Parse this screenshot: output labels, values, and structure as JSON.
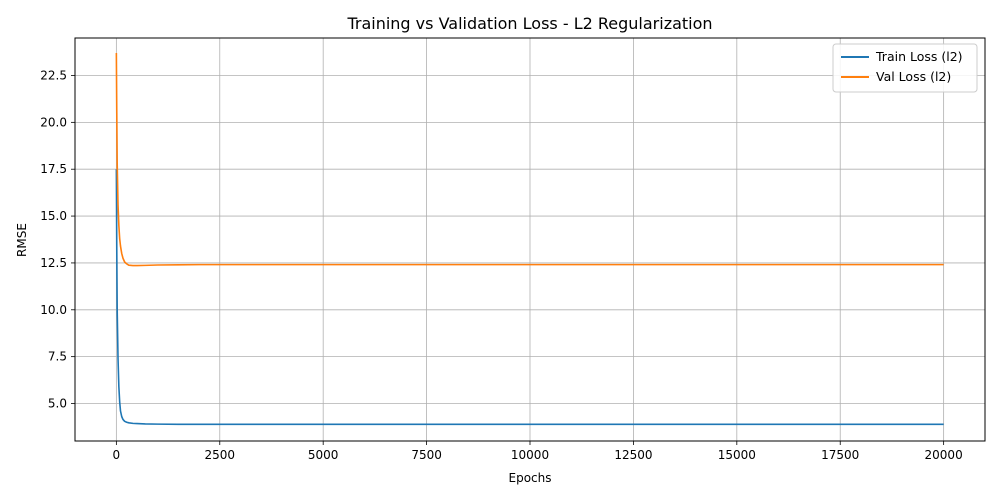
{
  "chart_data": {
    "type": "line",
    "title": "Training vs Validation Loss - L2 Regularization",
    "xlabel": "Epochs",
    "ylabel": "RMSE",
    "xlim": [
      -1000,
      21000
    ],
    "ylim": [
      3.0,
      24.5
    ],
    "xticks": [
      0,
      2500,
      5000,
      7500,
      10000,
      12500,
      15000,
      17500,
      20000
    ],
    "yticks": [
      5.0,
      7.5,
      10.0,
      12.5,
      15.0,
      17.5,
      20.0,
      22.5
    ],
    "grid": true,
    "legend_position": "top-right",
    "series": [
      {
        "name": "Train Loss (l2)",
        "color": "#1f77b4",
        "x": [
          0,
          10,
          20,
          40,
          60,
          80,
          100,
          130,
          160,
          200,
          250,
          300,
          400,
          500,
          700,
          1000,
          1500,
          2000,
          3000,
          5000,
          7500,
          10000,
          12500,
          15000,
          17500,
          20000
        ],
        "y": [
          17.5,
          13.2,
          10.0,
          7.4,
          5.9,
          5.1,
          4.6,
          4.3,
          4.15,
          4.05,
          4.0,
          3.97,
          3.94,
          3.93,
          3.91,
          3.9,
          3.89,
          3.89,
          3.89,
          3.89,
          3.89,
          3.89,
          3.89,
          3.89,
          3.89,
          3.89
        ]
      },
      {
        "name": "Val Loss (l2)",
        "color": "#ff7f0e",
        "x": [
          0,
          10,
          20,
          40,
          60,
          80,
          100,
          130,
          160,
          200,
          250,
          300,
          400,
          500,
          700,
          1000,
          1500,
          2000,
          3000,
          5000,
          7500,
          10000,
          12500,
          15000,
          17500,
          20000
        ],
        "y": [
          23.7,
          20.5,
          17.8,
          15.6,
          14.5,
          13.8,
          13.4,
          13.0,
          12.75,
          12.55,
          12.45,
          12.38,
          12.36,
          12.36,
          12.37,
          12.39,
          12.4,
          12.41,
          12.41,
          12.41,
          12.41,
          12.41,
          12.41,
          12.41,
          12.41,
          12.41
        ]
      }
    ]
  }
}
